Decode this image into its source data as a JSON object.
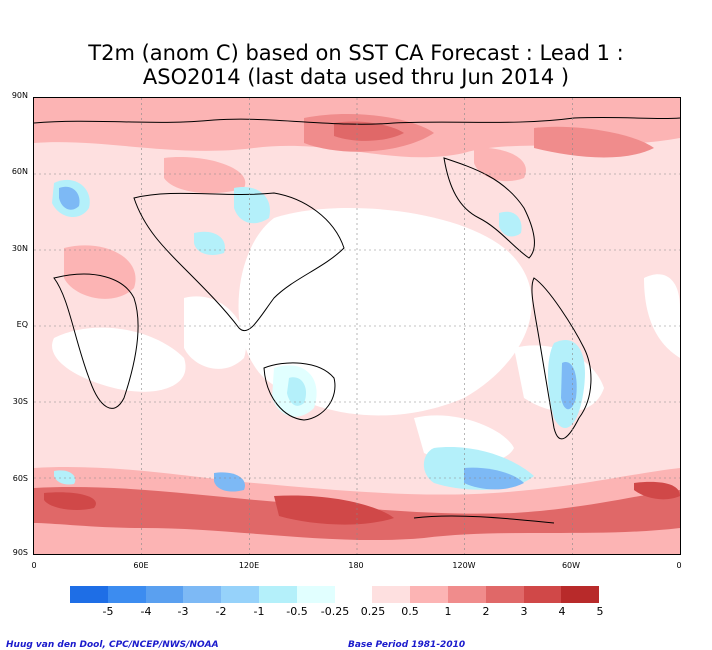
{
  "title_line1": "T2m (anom C) based on SST CA Forecast : Lead 1 :",
  "title_line2": "ASO2014 (last data used thru Jun 2014 )",
  "lat_labels": [
    "90N",
    "60N",
    "30N",
    "EQ",
    "30S",
    "60S",
    "90S"
  ],
  "lon_labels": [
    "0",
    "60E",
    "120E",
    "180",
    "120W",
    "60W",
    "0"
  ],
  "legend": {
    "labels": [
      "-5",
      "-4",
      "-3",
      "-2",
      "-1",
      "-0.5",
      "-0.25",
      "0.25",
      "0.5",
      "1",
      "2",
      "3",
      "4",
      "5"
    ],
    "colors": [
      "#1e6ee6",
      "#3c8cf0",
      "#5aa0f0",
      "#7db9f5",
      "#96d2fa",
      "#b4f0fa",
      "#e1ffff",
      "#ffffff",
      "#fee0e0",
      "#fcb4b4",
      "#f08c8c",
      "#e06868",
      "#d04848",
      "#b82a2a"
    ]
  },
  "credit_left": "Huug van den Dool, CPC/NCEP/NWS/NOAA",
  "credit_right": "Base Period 1981-2010"
}
